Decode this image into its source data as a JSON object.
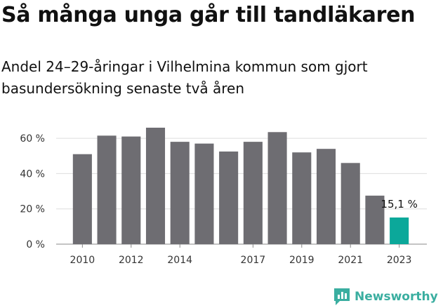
{
  "title": "Så många unga går till tandläkaren",
  "subtitle": "Andel 24–29-åringar i Vilhelmina kommun som gjort basundersökning senaste två åren",
  "brand": {
    "name": "Newsworthy",
    "color": "#3aaea0",
    "icon": "newsworthy-chart-icon"
  },
  "chart_data": {
    "type": "bar",
    "title": "Så många unga går till tandläkaren",
    "subtitle": "Andel 24–29-åringar i Vilhelmina kommun som gjort basundersökning senaste två åren",
    "xlabel": "",
    "ylabel": "",
    "categories": [
      "2010",
      "2011",
      "2012",
      "2013",
      "2014",
      "2015",
      "2016",
      "2017",
      "2018",
      "2019",
      "2020",
      "2021",
      "2022",
      "2023"
    ],
    "values": [
      51,
      61.5,
      61,
      66,
      58,
      57,
      52.5,
      58,
      63.5,
      52,
      54,
      46,
      27.5,
      15.1
    ],
    "ylim": [
      0,
      66
    ],
    "yticks": [
      0,
      20,
      40,
      60
    ],
    "ytick_labels": [
      "0 %",
      "20 %",
      "40 %",
      "60 %"
    ],
    "xtick_labels": [
      "2010",
      "2012",
      "2014",
      "2017",
      "2019",
      "2021",
      "2023"
    ],
    "annotation": {
      "category": "2023",
      "label": "15,1 %"
    },
    "bar_color": "#6e6d72",
    "highlight_color": "#0ba89a",
    "grid": true
  }
}
